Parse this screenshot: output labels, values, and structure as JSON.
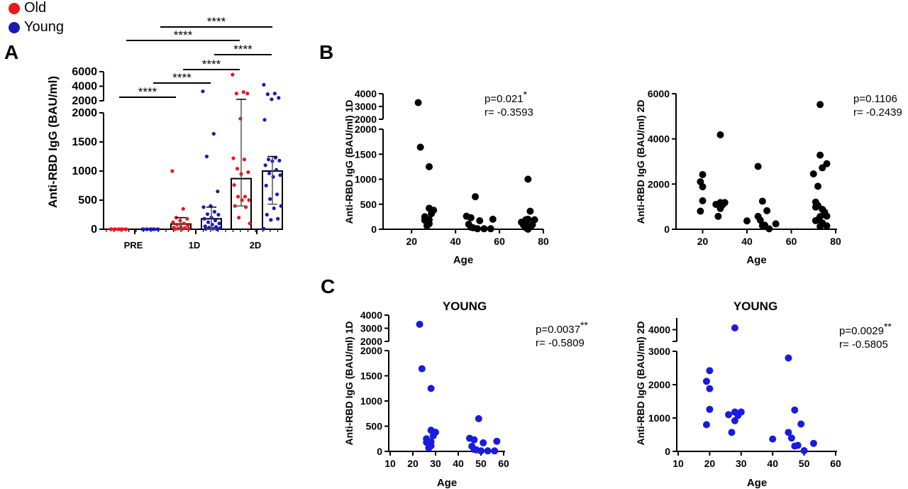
{
  "panel_labels": {
    "a": "A",
    "b": "B",
    "c": "C"
  },
  "legend": [
    {
      "label": "Old",
      "color": "#e8181e"
    },
    {
      "label": "Young",
      "color": "#1a1ab4"
    }
  ],
  "stats": [
    {
      "p": "p=0.021",
      "sig": "*",
      "r": "r= -0.3593"
    },
    {
      "p": "p=0.1106",
      "sig": "",
      "r": "r= -0.2439"
    },
    {
      "p": "p=0.0037",
      "sig": "**",
      "r": "r= -0.5809"
    },
    {
      "p": "p=0.0029",
      "sig": "**",
      "r": "r= -0.5805"
    }
  ],
  "chart_data": [
    {
      "type": "scatter-bar",
      "panel": "A",
      "ylabel": "Anti-RBD IgG (BAU/ml)",
      "categories": [
        "PRE",
        "1D",
        "2D"
      ],
      "y_segments": [
        [
          0,
          2000
        ],
        [
          2000,
          6000
        ]
      ],
      "yticks": [
        [
          0,
          500,
          1000,
          1500,
          2000
        ],
        [
          2000,
          4000,
          6000
        ]
      ],
      "series": [
        {
          "name": "Old",
          "color": "#e8181e",
          "groups": [
            {
              "cat": "PRE",
              "mean": 0,
              "err": null,
              "values": [
                0,
                0,
                0,
                0,
                0,
                0,
                0,
                0,
                0,
                0
              ]
            },
            {
              "cat": "1D",
              "mean": 90,
              "err": [
                0,
                200
              ],
              "values": [
                1000,
                350,
                200,
                180,
                150,
                120,
                100,
                80,
                60,
                40,
                30,
                20,
                10,
                5,
                0,
                0
              ]
            },
            {
              "cat": "2D",
              "mean": 870,
              "err": [
                400,
                2200
              ],
              "values": [
                5600,
                3200,
                3000,
                3000,
                1900,
                1220,
                1200,
                1040,
                980,
                950,
                760,
                560,
                560,
                500,
                500,
                400,
                380,
                200,
                100
              ]
            }
          ]
        },
        {
          "name": "Young",
          "color": "#1a1ab4",
          "groups": [
            {
              "cat": "PRE",
              "mean": 0,
              "err": null,
              "values": [
                0,
                0,
                0,
                0,
                0,
                0,
                0,
                0,
                0,
                0
              ]
            },
            {
              "cat": "1D",
              "mean": 180,
              "err": [
                0,
                380
              ],
              "values": [
                3300,
                1640,
                1250,
                650,
                400,
                380,
                300,
                260,
                250,
                200,
                180,
                150,
                120,
                100,
                80,
                50,
                40,
                30,
                20,
                10,
                5,
                0
              ]
            },
            {
              "cat": "2D",
              "mean": 1000,
              "err": [
                430,
                1250
              ],
              "values": [
                4200,
                3000,
                2900,
                2400,
                2200,
                1880,
                1230,
                1200,
                1180,
                1170,
                1100,
                1020,
                960,
                930,
                900,
                750,
                600,
                520,
                400,
                360,
                250,
                180,
                160,
                10
              ]
            }
          ]
        }
      ],
      "significance": [
        {
          "from": "PRE-Old",
          "to": "1D-Old",
          "label": "****"
        },
        {
          "from": "PRE-Young",
          "to": "1D-Young",
          "label": "****"
        },
        {
          "from": "1D-Old",
          "to": "2D-Old",
          "label": "****"
        },
        {
          "from": "1D-Young",
          "to": "2D-Young",
          "label": "****"
        },
        {
          "from": "PRE-Old",
          "to": "2D-Old",
          "label": "****"
        },
        {
          "from": "PRE-Young",
          "to": "2D-Young",
          "label": "****"
        }
      ]
    },
    {
      "type": "scatter",
      "panel": "B",
      "title": "",
      "xlabel": "Age",
      "ylabel": "Anti-RBD IgG (BAU/ml) 1D",
      "color": "#000000",
      "xticks": [
        20,
        40,
        60,
        80
      ],
      "y_segments": [
        [
          0,
          2000
        ],
        [
          2000,
          4000
        ]
      ],
      "yticks": [
        [
          0,
          500,
          1000,
          1500,
          2000
        ],
        [
          2000,
          3000,
          4000
        ]
      ],
      "points": [
        [
          23,
          3300
        ],
        [
          24,
          1640
        ],
        [
          28,
          1250
        ],
        [
          28,
          420
        ],
        [
          30,
          380
        ],
        [
          29,
          310
        ],
        [
          26,
          250
        ],
        [
          26,
          180
        ],
        [
          28,
          190
        ],
        [
          27,
          70
        ],
        [
          28,
          110
        ],
        [
          45,
          260
        ],
        [
          47,
          230
        ],
        [
          46,
          100
        ],
        [
          48,
          30
        ],
        [
          49,
          650
        ],
        [
          50,
          10
        ],
        [
          51,
          170
        ],
        [
          53,
          10
        ],
        [
          56,
          10
        ],
        [
          57,
          200
        ],
        [
          47,
          40
        ],
        [
          73,
          1000
        ],
        [
          70,
          140
        ],
        [
          72,
          190
        ],
        [
          73,
          200
        ],
        [
          74,
          360
        ],
        [
          76,
          190
        ],
        [
          71,
          80
        ],
        [
          72,
          30
        ],
        [
          73,
          0
        ],
        [
          75,
          90
        ],
        [
          74,
          50
        ],
        [
          72,
          120
        ]
      ]
    },
    {
      "type": "scatter",
      "panel": "B",
      "title": "",
      "xlabel": "Age",
      "ylabel": "Anti-RBD IgG (BAU/ml) 2D",
      "color": "#000000",
      "xticks": [
        20,
        40,
        60,
        80
      ],
      "y_segments": [
        [
          0,
          6000
        ]
      ],
      "yticks": [
        [
          0,
          2000,
          4000,
          6000
        ]
      ],
      "points": [
        [
          19,
          2100
        ],
        [
          20,
          2420
        ],
        [
          20,
          1880
        ],
        [
          20,
          1260
        ],
        [
          19,
          800
        ],
        [
          26,
          1100
        ],
        [
          28,
          1180
        ],
        [
          28,
          920
        ],
        [
          29,
          1080
        ],
        [
          30,
          1180
        ],
        [
          27,
          570
        ],
        [
          28,
          4180
        ],
        [
          40,
          370
        ],
        [
          45,
          2780
        ],
        [
          47,
          1240
        ],
        [
          45,
          570
        ],
        [
          46,
          400
        ],
        [
          49,
          820
        ],
        [
          47,
          160
        ],
        [
          48,
          180
        ],
        [
          50,
          20
        ],
        [
          53,
          240
        ],
        [
          73,
          5520
        ],
        [
          73,
          3280
        ],
        [
          76,
          2900
        ],
        [
          74,
          2720
        ],
        [
          70,
          2450
        ],
        [
          72,
          1900
        ],
        [
          71,
          1200
        ],
        [
          71,
          980
        ],
        [
          72,
          1050
        ],
        [
          74,
          880
        ],
        [
          75,
          760
        ],
        [
          76,
          580
        ],
        [
          73,
          560
        ],
        [
          72,
          420
        ],
        [
          71,
          380
        ],
        [
          73,
          120
        ],
        [
          76,
          150
        ],
        [
          74,
          280
        ]
      ]
    },
    {
      "type": "scatter",
      "panel": "C",
      "title": "YOUNG",
      "xlabel": "Age",
      "ylabel": "Anti-RBD IgG (BAU/ml) 1D",
      "color": "#1a1ae0",
      "xticks": [
        10,
        20,
        30,
        40,
        50,
        60
      ],
      "y_segments": [
        [
          0,
          2000
        ],
        [
          2000,
          4000
        ]
      ],
      "yticks": [
        [
          0,
          500,
          1000,
          1500,
          2000
        ],
        [
          2000,
          3000,
          4000
        ]
      ],
      "points": [
        [
          23,
          3300
        ],
        [
          24,
          1640
        ],
        [
          28,
          1250
        ],
        [
          28,
          420
        ],
        [
          30,
          380
        ],
        [
          29,
          310
        ],
        [
          26,
          250
        ],
        [
          26,
          180
        ],
        [
          28,
          190
        ],
        [
          27,
          70
        ],
        [
          28,
          110
        ],
        [
          45,
          260
        ],
        [
          47,
          230
        ],
        [
          46,
          100
        ],
        [
          48,
          30
        ],
        [
          49,
          650
        ],
        [
          50,
          10
        ],
        [
          51,
          170
        ],
        [
          53,
          10
        ],
        [
          56,
          10
        ],
        [
          57,
          200
        ],
        [
          47,
          40
        ]
      ]
    },
    {
      "type": "scatter",
      "panel": "C",
      "title": "YOUNG",
      "xlabel": "Age",
      "ylabel": "Anti-RBD IgG (BAU/ml) 2D",
      "color": "#1a1ae0",
      "xticks": [
        10,
        20,
        30,
        40,
        50,
        60
      ],
      "y_segments": [
        [
          0,
          3000
        ],
        [
          3600,
          4400
        ]
      ],
      "yticks": [
        [
          0,
          1000,
          2000,
          3000
        ],
        [
          4000
        ]
      ],
      "points": [
        [
          19,
          2100
        ],
        [
          20,
          2420
        ],
        [
          20,
          1880
        ],
        [
          20,
          1260
        ],
        [
          19,
          800
        ],
        [
          26,
          1100
        ],
        [
          28,
          1180
        ],
        [
          28,
          920
        ],
        [
          29,
          1080
        ],
        [
          30,
          1180
        ],
        [
          27,
          570
        ],
        [
          28,
          4060
        ],
        [
          40,
          370
        ],
        [
          45,
          2800
        ],
        [
          47,
          1240
        ],
        [
          45,
          570
        ],
        [
          46,
          400
        ],
        [
          49,
          820
        ],
        [
          47,
          160
        ],
        [
          48,
          180
        ],
        [
          50,
          20
        ],
        [
          53,
          240
        ]
      ]
    }
  ]
}
